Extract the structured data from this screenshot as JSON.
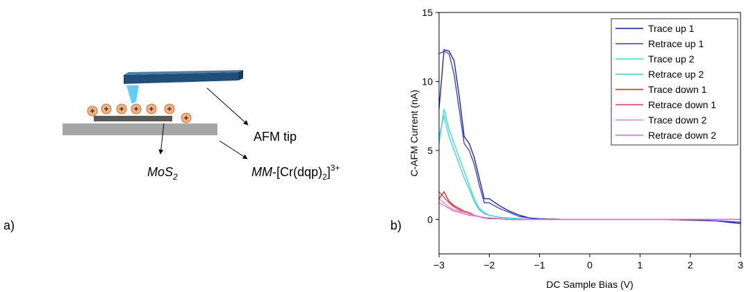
{
  "panel_labels": [
    "a)",
    "b)"
  ],
  "diagram": {
    "tip_label": "AFM tip",
    "mos2_label": [
      "MoS",
      "2"
    ],
    "complex_label": [
      "MM",
      "-[Cr(dqp)",
      "2",
      "]",
      "3+"
    ]
  },
  "chart_data": {
    "type": "line",
    "x_label": "DC Sample Bias (V)",
    "y_label": "C-AFM Current (nA)",
    "x": [
      -3,
      -2.9,
      -2.8,
      -2.7,
      -2.6,
      -2.5,
      -2.4,
      -2.3,
      -2.2,
      -2.1,
      -2.0,
      -1.8,
      -1.6,
      -1.4,
      -1.2,
      -1.0,
      -0.5,
      0,
      0.5,
      1,
      1.5,
      2,
      2.5,
      3
    ],
    "series": [
      {
        "name": "Trace up 1",
        "color": "#1212b8",
        "values": [
          8,
          12.3,
          12.2,
          11.5,
          9,
          6,
          5.5,
          4.5,
          3,
          1.5,
          1.5,
          1.0,
          0.6,
          0.3,
          0.1,
          0.05,
          0,
          0,
          0,
          0,
          0,
          -0.05,
          -0.1,
          -0.3
        ]
      },
      {
        "name": "Retrace up 1",
        "color": "#2a3ae0",
        "values": [
          12,
          12.2,
          12,
          10.5,
          8,
          5.5,
          5,
          4,
          2.5,
          1.2,
          1.2,
          0.8,
          0.5,
          0.2,
          0.1,
          0.05,
          0,
          0,
          0,
          0,
          0,
          -0.05,
          -0.1,
          -0.2
        ]
      },
      {
        "name": "Trace up 2",
        "color": "#22e0ea",
        "values": [
          5.5,
          8,
          6.5,
          5.5,
          4.5,
          3.5,
          2.5,
          1.5,
          0.8,
          0.5,
          0.3,
          0.15,
          0.1,
          0.05,
          0,
          0,
          0,
          0,
          0,
          0,
          0,
          0,
          0,
          0
        ]
      },
      {
        "name": "Retrace up 2",
        "color": "#3fcfd8",
        "values": [
          6,
          7.5,
          6,
          5,
          4,
          3,
          2.2,
          1.3,
          0.7,
          0.4,
          0.3,
          0.15,
          0.1,
          0.05,
          0,
          0,
          0,
          0,
          0,
          0,
          0,
          0,
          0,
          0
        ]
      },
      {
        "name": "Trace down 1",
        "color": "#e02020",
        "values": [
          1.5,
          2,
          1.3,
          1.0,
          0.8,
          0.6,
          0.5,
          0.3,
          0.2,
          0.1,
          0.1,
          0.05,
          0,
          0,
          0,
          0,
          0,
          0,
          0,
          0,
          0,
          0,
          0,
          0
        ]
      },
      {
        "name": "Retrace down 1",
        "color": "#f03050",
        "values": [
          2,
          1.6,
          1.2,
          0.9,
          0.7,
          0.5,
          0.4,
          0.3,
          0.2,
          0.1,
          0.05,
          0.05,
          0,
          0,
          0,
          0,
          0,
          0,
          0,
          0,
          0,
          0,
          0,
          0
        ]
      },
      {
        "name": "Trace down 2",
        "color": "#f080c0",
        "values": [
          1.5,
          1.2,
          0.9,
          0.7,
          0.6,
          0.5,
          0.4,
          0.3,
          0.2,
          0.15,
          0.1,
          0.05,
          0,
          0,
          0,
          0,
          0,
          0,
          0,
          0,
          0,
          0,
          0,
          0
        ]
      },
      {
        "name": "Retrace down 2",
        "color": "#d070d0",
        "values": [
          1.2,
          1.0,
          0.8,
          0.6,
          0.5,
          0.4,
          0.3,
          0.25,
          0.2,
          0.1,
          0.1,
          0.05,
          0,
          0,
          0,
          0,
          0,
          0,
          0,
          0,
          0,
          0,
          0,
          0
        ]
      }
    ],
    "xlim": [
      -3,
      3
    ],
    "ylim": [
      -2.5,
      15
    ],
    "xticks": [
      {
        "value": -3,
        "label": "−3"
      },
      {
        "value": -2,
        "label": "−2"
      },
      {
        "value": -1,
        "label": "−1"
      },
      0,
      1,
      2,
      3
    ],
    "yticks": [
      0,
      5,
      10,
      15
    ],
    "legend": "upper right"
  }
}
